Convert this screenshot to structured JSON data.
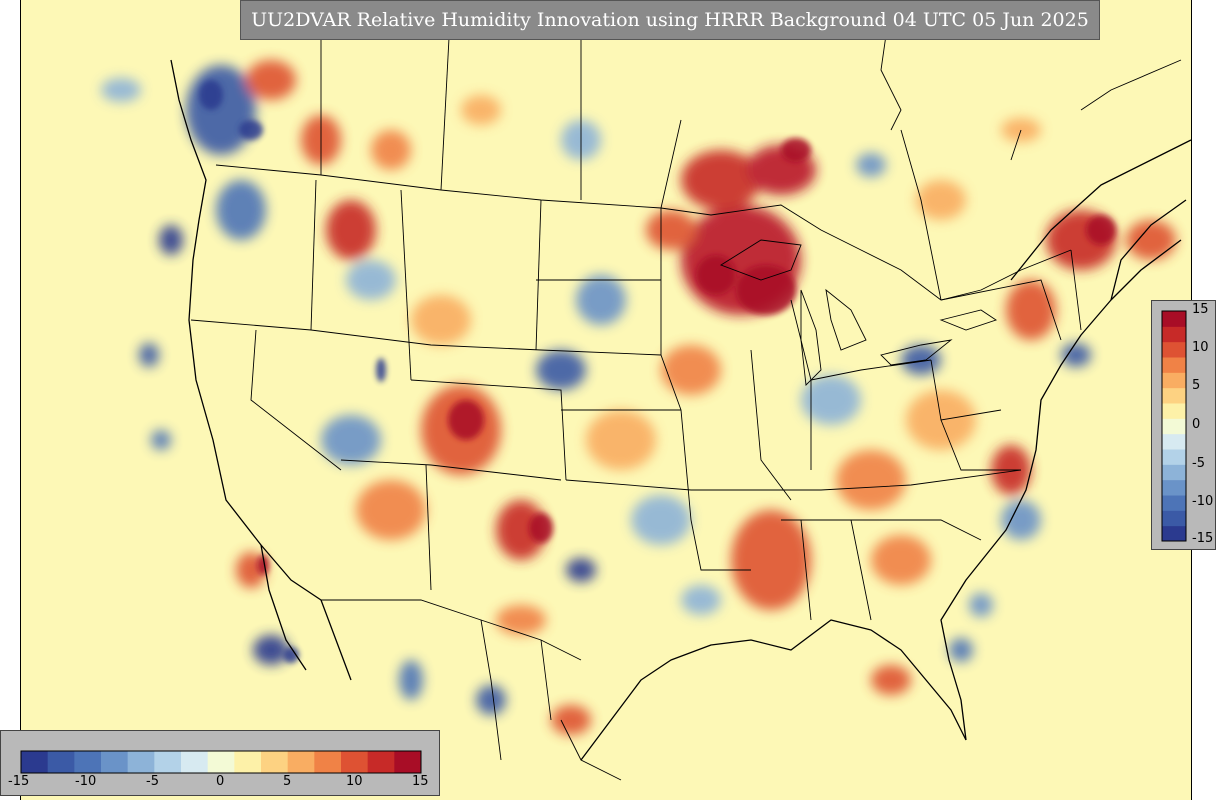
{
  "title": "UU2DVAR Relative Humidity Innovation using HRRR Background 04 UTC 05 Jun 2025",
  "colorbar": {
    "range": [
      -15,
      15
    ],
    "ticks": [
      "15",
      "10",
      "5",
      "0",
      "-5",
      "-10",
      "-15"
    ],
    "bottom_ticks": [
      "-15",
      "-10",
      "-5",
      "0",
      "5",
      "10",
      "15"
    ],
    "colors": [
      "#2b3a8f",
      "#3b5aa6",
      "#4d74b7",
      "#6a93c8",
      "#8db3d8",
      "#b3d2e8",
      "#d7eaf1",
      "#f3fad6",
      "#fdf1a8",
      "#fdd282",
      "#f9ad62",
      "#f08246",
      "#de5233",
      "#c72a28",
      "#a80d26"
    ]
  },
  "map": {
    "background_color": "#fdf8b6"
  }
}
